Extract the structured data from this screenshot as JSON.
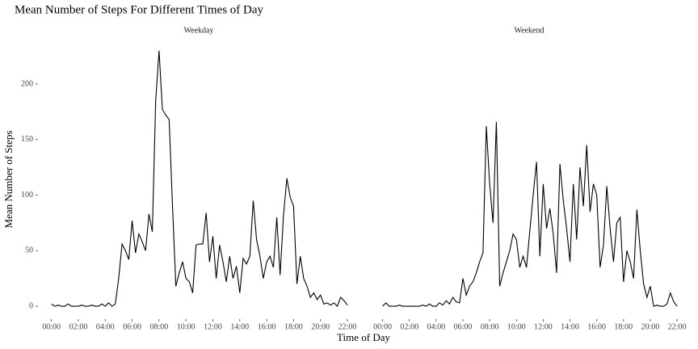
{
  "chart_data": [
    {
      "type": "line",
      "title": "Mean Number of Steps For Different Times of Day",
      "panel_title": "Weekday",
      "x_label": "Time of Day",
      "y_label": "Mean Number of Steps",
      "color": "#000000",
      "x": [
        0,
        0.25,
        0.5,
        0.75,
        1,
        1.25,
        1.5,
        1.75,
        2,
        2.25,
        2.5,
        2.75,
        3,
        3.25,
        3.5,
        3.75,
        4,
        4.25,
        4.5,
        4.75,
        5,
        5.25,
        5.5,
        5.75,
        6,
        6.25,
        6.5,
        6.75,
        7,
        7.25,
        7.5,
        7.75,
        8,
        8.25,
        8.5,
        8.75,
        9,
        9.25,
        9.5,
        9.75,
        10,
        10.25,
        10.5,
        10.75,
        11,
        11.25,
        11.5,
        11.75,
        12,
        12.25,
        12.5,
        12.75,
        13,
        13.25,
        13.5,
        13.75,
        14,
        14.25,
        14.5,
        14.75,
        15,
        15.25,
        15.5,
        15.75,
        16,
        16.25,
        16.5,
        16.75,
        17,
        17.25,
        17.5,
        17.75,
        18,
        18.25,
        18.5,
        18.75,
        19,
        19.25,
        19.5,
        19.75,
        20,
        20.25,
        20.5,
        20.75,
        21,
        21.25,
        21.5,
        21.75,
        22
      ],
      "values": [
        2,
        0,
        1,
        0,
        0,
        2,
        0,
        0,
        0,
        1,
        0,
        0,
        1,
        0,
        0,
        2,
        0,
        3,
        0,
        2,
        25,
        56,
        50,
        42,
        77,
        48,
        65,
        58,
        50,
        83,
        67,
        185,
        230,
        177,
        172,
        168,
        90,
        18,
        30,
        40,
        25,
        22,
        12,
        55,
        56,
        56,
        84,
        40,
        63,
        25,
        55,
        40,
        22,
        45,
        25,
        36,
        12,
        43,
        38,
        45,
        95,
        60,
        45,
        25,
        40,
        45,
        35,
        80,
        28,
        82,
        115,
        98,
        90,
        20,
        45,
        25,
        18,
        8,
        12,
        6,
        10,
        2,
        3,
        1,
        3,
        0,
        8,
        5,
        1
      ],
      "xlim": [
        -1,
        22.9
      ],
      "ylim": [
        -11.6,
        235.6
      ],
      "xticks": [
        {
          "value": 0,
          "label": "00:00"
        },
        {
          "value": 2,
          "label": "02:00"
        },
        {
          "value": 4,
          "label": "04:00"
        },
        {
          "value": 6,
          "label": "06:00"
        },
        {
          "value": 8,
          "label": "08:00"
        },
        {
          "value": 10,
          "label": "10:00"
        },
        {
          "value": 12,
          "label": "12:00"
        },
        {
          "value": 14,
          "label": "14:00"
        },
        {
          "value": 16,
          "label": "16:00"
        },
        {
          "value": 18,
          "label": "18:00"
        },
        {
          "value": 20,
          "label": "20:00"
        },
        {
          "value": 22,
          "label": "22:00"
        }
      ],
      "yticks": [
        0,
        50,
        100,
        150,
        200
      ]
    },
    {
      "type": "line",
      "panel_title": "Weekend",
      "color": "#000000",
      "x": [
        0,
        0.25,
        0.5,
        0.75,
        1,
        1.25,
        1.5,
        1.75,
        2,
        2.25,
        2.5,
        2.75,
        3,
        3.25,
        3.5,
        3.75,
        4,
        4.25,
        4.5,
        4.75,
        5,
        5.25,
        5.5,
        5.75,
        6,
        6.25,
        6.5,
        6.75,
        7,
        7.25,
        7.5,
        7.75,
        8,
        8.25,
        8.5,
        8.75,
        9,
        9.25,
        9.5,
        9.75,
        10,
        10.25,
        10.5,
        10.75,
        11,
        11.25,
        11.5,
        11.75,
        12,
        12.25,
        12.5,
        12.75,
        13,
        13.25,
        13.5,
        13.75,
        14,
        14.25,
        14.5,
        14.75,
        15,
        15.25,
        15.5,
        15.75,
        16,
        16.25,
        16.5,
        16.75,
        17,
        17.25,
        17.5,
        17.75,
        18,
        18.25,
        18.5,
        18.75,
        19,
        19.25,
        19.5,
        19.75,
        20,
        20.25,
        20.5,
        20.75,
        21,
        21.25,
        21.5,
        21.75,
        22
      ],
      "values": [
        0,
        3,
        0,
        0,
        0,
        1,
        0,
        0,
        0,
        0,
        0,
        0,
        1,
        0,
        2,
        0,
        0,
        3,
        1,
        5,
        2,
        8,
        4,
        3,
        25,
        10,
        18,
        22,
        30,
        40,
        48,
        162,
        110,
        75,
        166,
        18,
        30,
        40,
        50,
        65,
        60,
        35,
        45,
        35,
        68,
        100,
        130,
        45,
        110,
        70,
        88,
        65,
        30,
        128,
        95,
        70,
        40,
        110,
        60,
        125,
        90,
        145,
        85,
        110,
        100,
        35,
        55,
        108,
        70,
        40,
        75,
        80,
        22,
        50,
        40,
        25,
        87,
        50,
        20,
        8,
        18,
        0,
        1,
        0,
        0,
        2,
        12,
        4,
        0
      ],
      "xlim": [
        -1,
        22.9
      ],
      "ylim": [
        -11.6,
        235.6
      ],
      "xticks": [
        {
          "value": 0,
          "label": "00:00"
        },
        {
          "value": 2,
          "label": "02:00"
        },
        {
          "value": 4,
          "label": "04:00"
        },
        {
          "value": 6,
          "label": "06:00"
        },
        {
          "value": 8,
          "label": "08:00"
        },
        {
          "value": 10,
          "label": "10:00"
        },
        {
          "value": 12,
          "label": "12:00"
        },
        {
          "value": 14,
          "label": "14:00"
        },
        {
          "value": 16,
          "label": "16:00"
        },
        {
          "value": 18,
          "label": "18:00"
        },
        {
          "value": 20,
          "label": "20:00"
        },
        {
          "value": 22,
          "label": "22:00"
        }
      ]
    }
  ]
}
